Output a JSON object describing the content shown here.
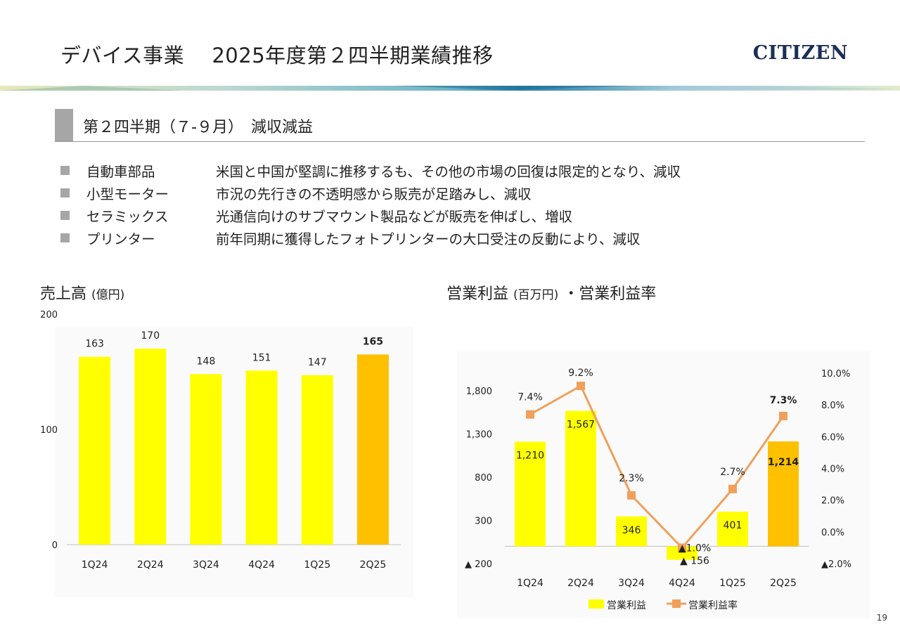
{
  "header": {
    "title": "デバイス事業　 2025年度第２四半期業績推移",
    "brand": "CITIZEN"
  },
  "section": {
    "heading": "第２四半期（７-９月）　減収減益"
  },
  "bullets": [
    {
      "name": "自動車部品",
      "text": "米国と中国が堅調に推移するも、その他の市場の回復は限定的となり、減収"
    },
    {
      "name": "小型モーター",
      "text": "市況の先行きの不透明感から販売が足踏みし、減収"
    },
    {
      "name": "セラミックス",
      "text": "光通信向けのサブマウント製品などが販売を伸ばし、増収"
    },
    {
      "name": "プリンター",
      "text": "前年同期に獲得したフォトプリンターの大口受注の反動により、減収"
    }
  ],
  "colors": {
    "bar": "#ffff00",
    "bar_highlight": "#ffc000",
    "line": "#f0a05a"
  },
  "page_number": "19",
  "chart_data": [
    {
      "type": "bar",
      "title": "売上高",
      "unit": "(億円)",
      "categories": [
        "1Q24",
        "2Q24",
        "3Q24",
        "4Q24",
        "1Q25",
        "2Q25"
      ],
      "values": [
        163,
        170,
        148,
        151,
        147,
        165
      ],
      "data_labels": [
        "163",
        "170",
        "148",
        "151",
        "147",
        "165"
      ],
      "highlight_index": 5,
      "ylim": [
        0,
        200
      ],
      "yticks": [
        "0",
        "100",
        "200"
      ],
      "ytick_values": [
        0,
        100,
        200
      ],
      "grid": false,
      "legend": "none"
    },
    {
      "type": "bar+line",
      "title": "営業利益",
      "unit": "(百万円)",
      "title_suffix": "・営業利益率",
      "categories": [
        "1Q24",
        "2Q24",
        "3Q24",
        "4Q24",
        "1Q25",
        "2Q25"
      ],
      "series": [
        {
          "name": "営業利益",
          "type": "bar",
          "axis": "left",
          "values": [
            1210,
            1567,
            346,
            -156,
            401,
            1214
          ],
          "data_labels": [
            "1,210",
            "1,567",
            "346",
            "▲ 156",
            "401",
            "1,214"
          ]
        },
        {
          "name": "営業利益率",
          "type": "line",
          "axis": "right",
          "values": [
            7.4,
            9.2,
            2.3,
            -1.0,
            2.7,
            7.3
          ],
          "data_labels": [
            "7.4%",
            "9.2%",
            "2.3%",
            "▲1.0%",
            "2.7%",
            "7.3%"
          ]
        }
      ],
      "highlight_index": 5,
      "y_left": {
        "ylim": [
          -200,
          1800
        ],
        "tick_values": [
          -200,
          300,
          800,
          1300,
          1800
        ],
        "tick_labels": [
          "▲ 200",
          "300",
          "800",
          "1,300",
          "1,800"
        ]
      },
      "y_right": {
        "ylim": [
          -2,
          10
        ],
        "tick_values": [
          -2,
          0,
          2,
          4,
          6,
          8,
          10
        ],
        "tick_labels": [
          "▲2.0%",
          "0.0%",
          "2.0%",
          "4.0%",
          "6.0%",
          "8.0%",
          "10.0%"
        ]
      },
      "grid": false,
      "legend": "bottom"
    }
  ]
}
